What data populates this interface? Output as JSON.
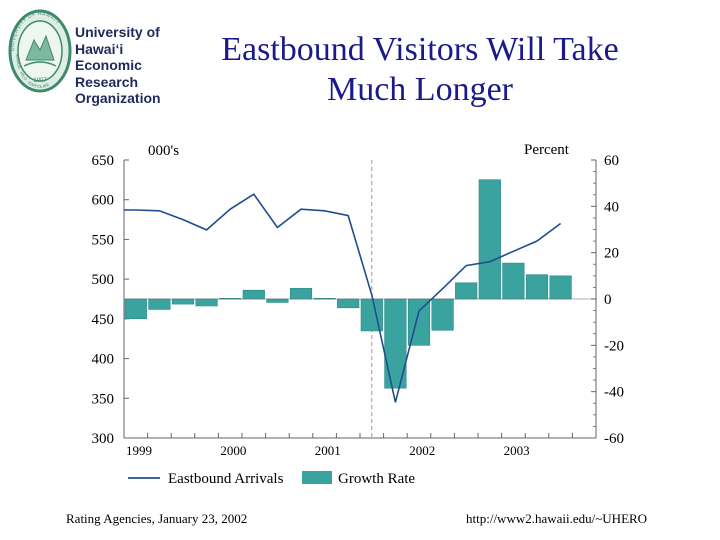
{
  "organization": {
    "name_lines": [
      "University of",
      "Hawai‘i",
      "Economic",
      "Research",
      "Organization"
    ],
    "seal": {
      "ring_text_top": "UNIVERSITY OF HAWAI‘I",
      "ring_text_bottom": "MĀNOA · HILO · KAPI‘OLANI",
      "year": "1907"
    }
  },
  "slide": {
    "title_lines": [
      "Eastbound Visitors Will Take",
      "Much Longer"
    ]
  },
  "chart_data": {
    "type": "bar+line",
    "left_axis": {
      "label": "000's",
      "range": [
        300,
        650
      ],
      "ticks": [
        650,
        600,
        550,
        500,
        450,
        400,
        350,
        300
      ]
    },
    "right_axis": {
      "label": "Percent",
      "range": [
        -60,
        60
      ],
      "ticks": [
        60,
        40,
        20,
        0,
        -20,
        -40,
        -60
      ]
    },
    "x_axis": {
      "year_labels": [
        "1999",
        "2000",
        "2001",
        "2002",
        "2003"
      ],
      "quarters_per_year": 4,
      "start_quarter": "1999Q1",
      "reference_line_at_quarter_index": 10.5
    },
    "legend": [
      {
        "name": "Eastbound Arrivals",
        "kind": "line"
      },
      {
        "name": "Growth Rate",
        "kind": "bar"
      }
    ],
    "colors": {
      "line": "#1f4e8c",
      "bar": "#3aa3a0",
      "bar_stroke": "#2b8a87",
      "axis": "#666666",
      "grid": "#c8c8c8",
      "title": "#1a1a8c",
      "reference_line": "#999999"
    },
    "series": [
      {
        "name": "Eastbound Arrivals",
        "axis": "left",
        "type": "line",
        "quarters": [
          "1999Q1",
          "1999Q2",
          "1999Q3",
          "1999Q4",
          "2000Q1",
          "2000Q2",
          "2000Q3",
          "2000Q4",
          "2001Q1",
          "2001Q2",
          "2001Q3",
          "2001Q4",
          "2002Q1",
          "2002Q2",
          "2002Q3",
          "2002Q4",
          "2003Q1",
          "2003Q2",
          "2003Q3",
          "2003Q4"
        ],
        "values": [
          587,
          586,
          575,
          562,
          588,
          607,
          565,
          588,
          586,
          580,
          480,
          345,
          460,
          488,
          517,
          522,
          535,
          548,
          570,
          null
        ]
      },
      {
        "name": "Growth Rate",
        "axis": "right",
        "type": "bar",
        "quarters": [
          "1999Q1",
          "1999Q2",
          "1999Q3",
          "1999Q4",
          "2000Q1",
          "2000Q2",
          "2000Q3",
          "2000Q4",
          "2001Q1",
          "2001Q2",
          "2001Q3",
          "2001Q4",
          "2002Q1",
          "2002Q2",
          "2002Q3",
          "2002Q4",
          "2003Q1",
          "2003Q2",
          "2003Q3",
          "2003Q4"
        ],
        "values": [
          -8.5,
          -4.5,
          -2.2,
          -3.0,
          0.3,
          3.8,
          -1.5,
          4.6,
          0.3,
          -3.8,
          -13.8,
          -38.5,
          -20.0,
          -13.5,
          7.0,
          51.5,
          15.5,
          10.5,
          10.0,
          null
        ]
      }
    ]
  },
  "footer": {
    "left": "Rating Agencies, January 23, 2002",
    "right": "http://www2.hawaii.edu/~UHERO"
  }
}
